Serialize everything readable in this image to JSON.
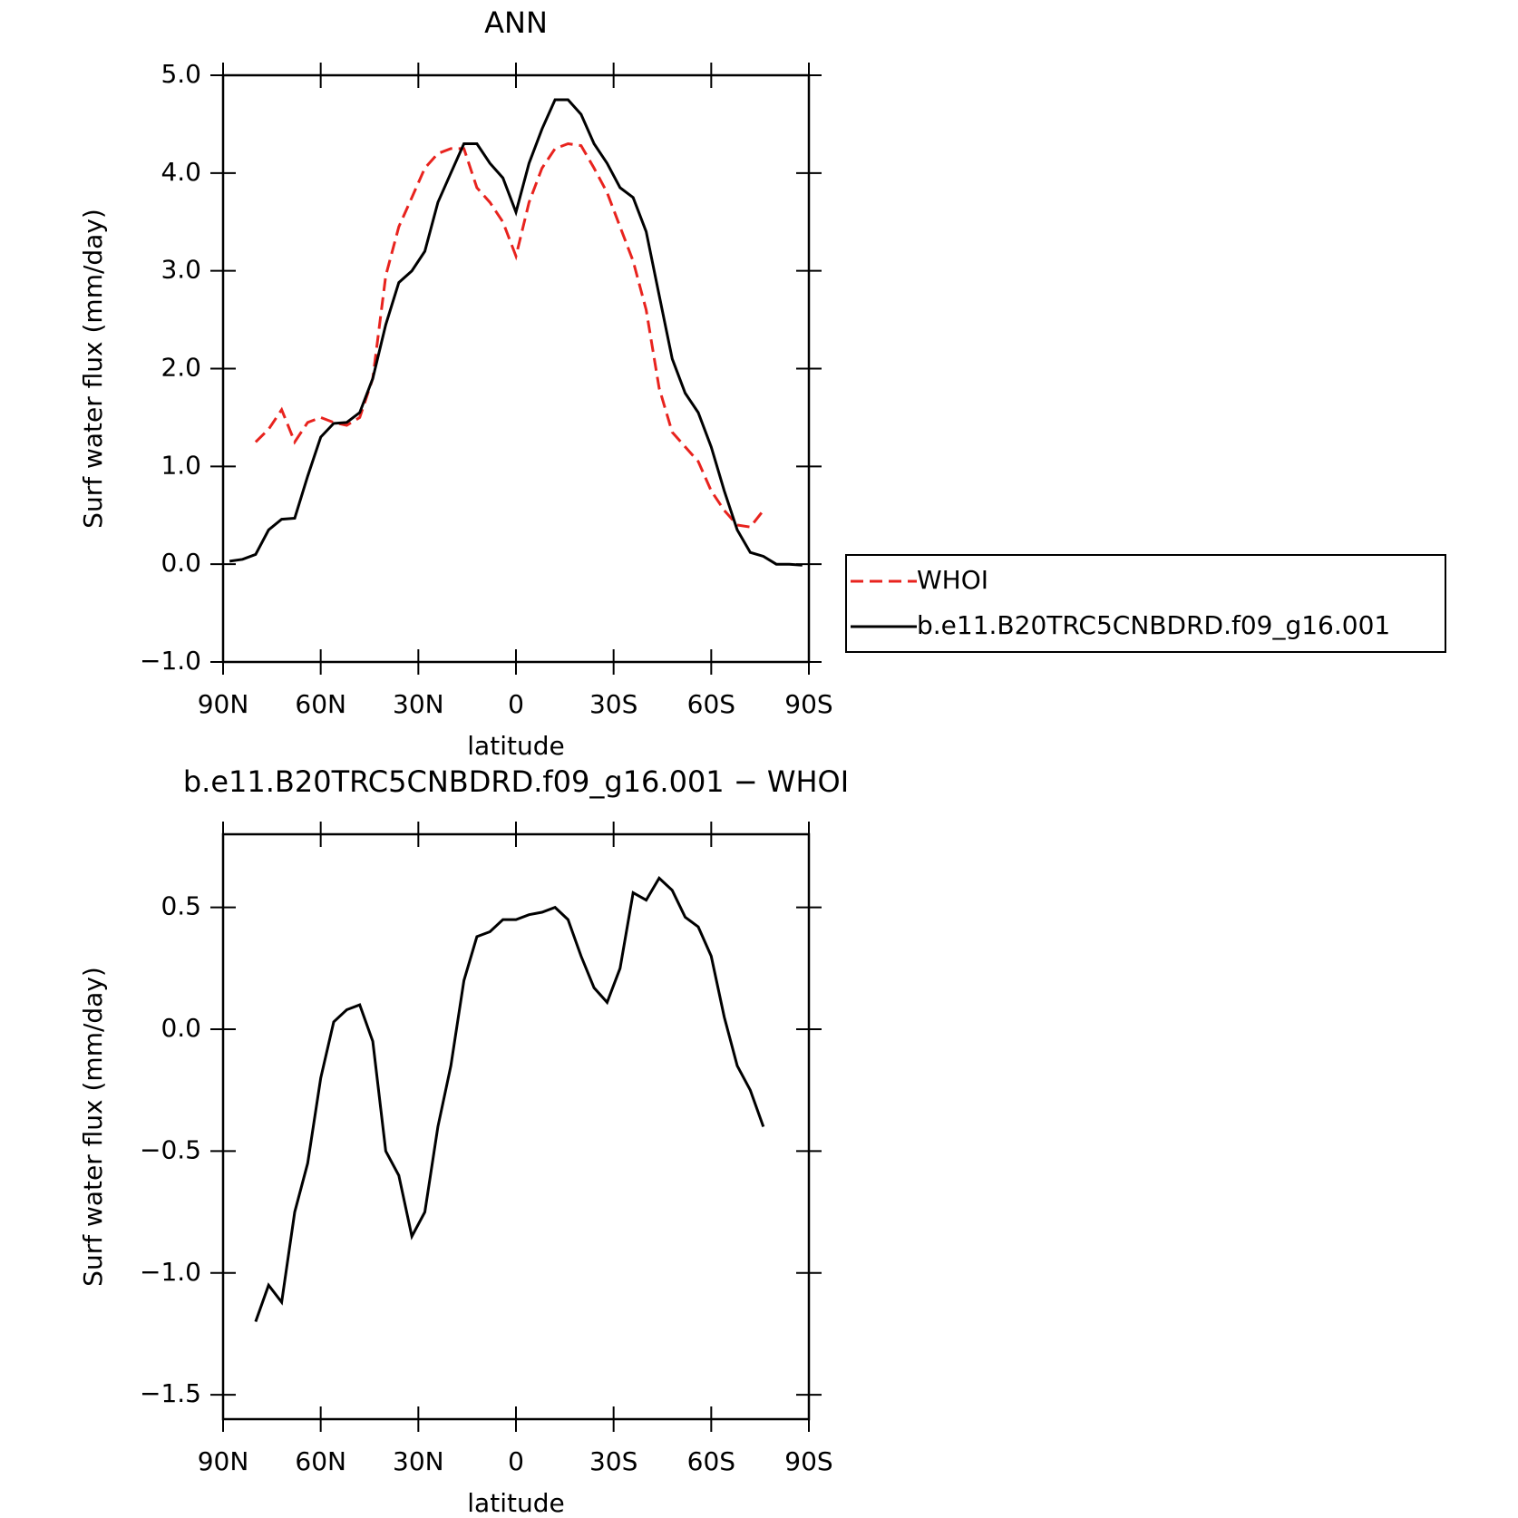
{
  "chart_data": [
    {
      "type": "line",
      "title": "ANN",
      "xlabel": "latitude",
      "ylabel": "Surf water flux (mm/day)",
      "x": [
        88,
        84,
        80,
        76,
        72,
        68,
        64,
        60,
        56,
        52,
        48,
        44,
        40,
        36,
        32,
        28,
        24,
        20,
        16,
        12,
        8,
        4,
        0,
        -4,
        -8,
        -12,
        -16,
        -20,
        -24,
        -28,
        -32,
        -36,
        -40,
        -44,
        -48,
        -52,
        -56,
        -60,
        -64,
        -68,
        -72,
        -76,
        -80,
        -84,
        -88
      ],
      "xlim": [
        90,
        -90
      ],
      "xticks": [
        {
          "value": 90,
          "label": "90N"
        },
        {
          "value": 60,
          "label": "60N"
        },
        {
          "value": 30,
          "label": "30N"
        },
        0,
        {
          "value": -30,
          "label": "30S"
        },
        {
          "value": -60,
          "label": "60S"
        },
        {
          "value": -90,
          "label": "90S"
        }
      ],
      "ylim": [
        -1,
        5
      ],
      "yticks": [
        {
          "value": -1,
          "label": "−1.0"
        },
        {
          "value": 0,
          "label": "0.0"
        },
        {
          "value": 1,
          "label": "1.0"
        },
        {
          "value": 2,
          "label": "2.0"
        },
        {
          "value": 3,
          "label": "3.0"
        },
        {
          "value": 4,
          "label": "4.0"
        },
        {
          "value": 5,
          "label": "5.0"
        }
      ],
      "legend_position": "right",
      "series": [
        {
          "name": "WHOI",
          "color": "#e8231e",
          "dashed": true,
          "values": [
            null,
            null,
            1.25,
            1.38,
            1.58,
            1.25,
            1.45,
            1.5,
            1.45,
            1.42,
            1.5,
            1.9,
            2.95,
            3.45,
            3.75,
            4.05,
            4.2,
            4.25,
            4.25,
            3.85,
            3.7,
            3.5,
            3.15,
            3.7,
            4.05,
            4.25,
            4.3,
            4.28,
            4.05,
            3.8,
            3.45,
            3.1,
            2.6,
            1.8,
            1.35,
            1.2,
            1.05,
            0.75,
            0.55,
            0.4,
            0.38,
            0.55,
            null,
            null,
            null
          ]
        },
        {
          "name": "b.e11.B20TRC5CNBDRD.f09_g16.001",
          "color": "#000000",
          "dashed": false,
          "values": [
            0.03,
            0.05,
            0.1,
            0.35,
            0.46,
            0.47,
            0.9,
            1.3,
            1.44,
            1.45,
            1.55,
            1.9,
            2.45,
            2.88,
            3.0,
            3.2,
            3.7,
            4.0,
            4.3,
            4.3,
            4.1,
            3.95,
            3.6,
            4.1,
            4.45,
            4.75,
            4.75,
            4.6,
            4.3,
            4.1,
            3.85,
            3.75,
            3.4,
            2.75,
            2.1,
            1.75,
            1.55,
            1.2,
            0.75,
            0.35,
            0.12,
            0.08,
            0.0,
            0.0,
            -0.01
          ]
        }
      ]
    },
    {
      "type": "line",
      "title": "b.e11.B20TRC5CNBDRD.f09_g16.001 − WHOI",
      "xlabel": "latitude",
      "ylabel": "Surf water flux (mm/day)",
      "x": [
        80,
        76,
        72,
        68,
        64,
        60,
        56,
        52,
        48,
        44,
        40,
        36,
        32,
        28,
        24,
        20,
        16,
        12,
        8,
        4,
        0,
        -4,
        -8,
        -12,
        -16,
        -20,
        -24,
        -28,
        -32,
        -36,
        -40,
        -44,
        -48,
        -52,
        -56,
        -60,
        -64,
        -68,
        -72,
        -76
      ],
      "xlim": [
        90,
        -90
      ],
      "xticks": [
        {
          "value": 90,
          "label": "90N"
        },
        {
          "value": 60,
          "label": "60N"
        },
        {
          "value": 30,
          "label": "30N"
        },
        0,
        {
          "value": -30,
          "label": "30S"
        },
        {
          "value": -60,
          "label": "60S"
        },
        {
          "value": -90,
          "label": "90S"
        }
      ],
      "ylim": [
        -1.6,
        0.8
      ],
      "yticks": [
        {
          "value": -1.5,
          "label": "−1.5"
        },
        {
          "value": -1.0,
          "label": "−1.0"
        },
        {
          "value": -0.5,
          "label": "−0.5"
        },
        {
          "value": 0,
          "label": "0.0"
        },
        0.5
      ],
      "series": [
        {
          "color": "#000000",
          "dashed": false,
          "values": [
            -1.2,
            -1.05,
            -1.12,
            -0.75,
            -0.55,
            -0.2,
            0.03,
            0.08,
            0.1,
            -0.05,
            -0.5,
            -0.6,
            -0.85,
            -0.75,
            -0.4,
            -0.15,
            0.2,
            0.38,
            0.4,
            0.45,
            0.45,
            0.47,
            0.48,
            0.5,
            0.45,
            0.3,
            0.17,
            0.11,
            0.25,
            0.56,
            0.53,
            0.62,
            0.57,
            0.46,
            0.42,
            0.3,
            0.05,
            -0.15,
            -0.25,
            -0.4
          ]
        }
      ]
    }
  ]
}
